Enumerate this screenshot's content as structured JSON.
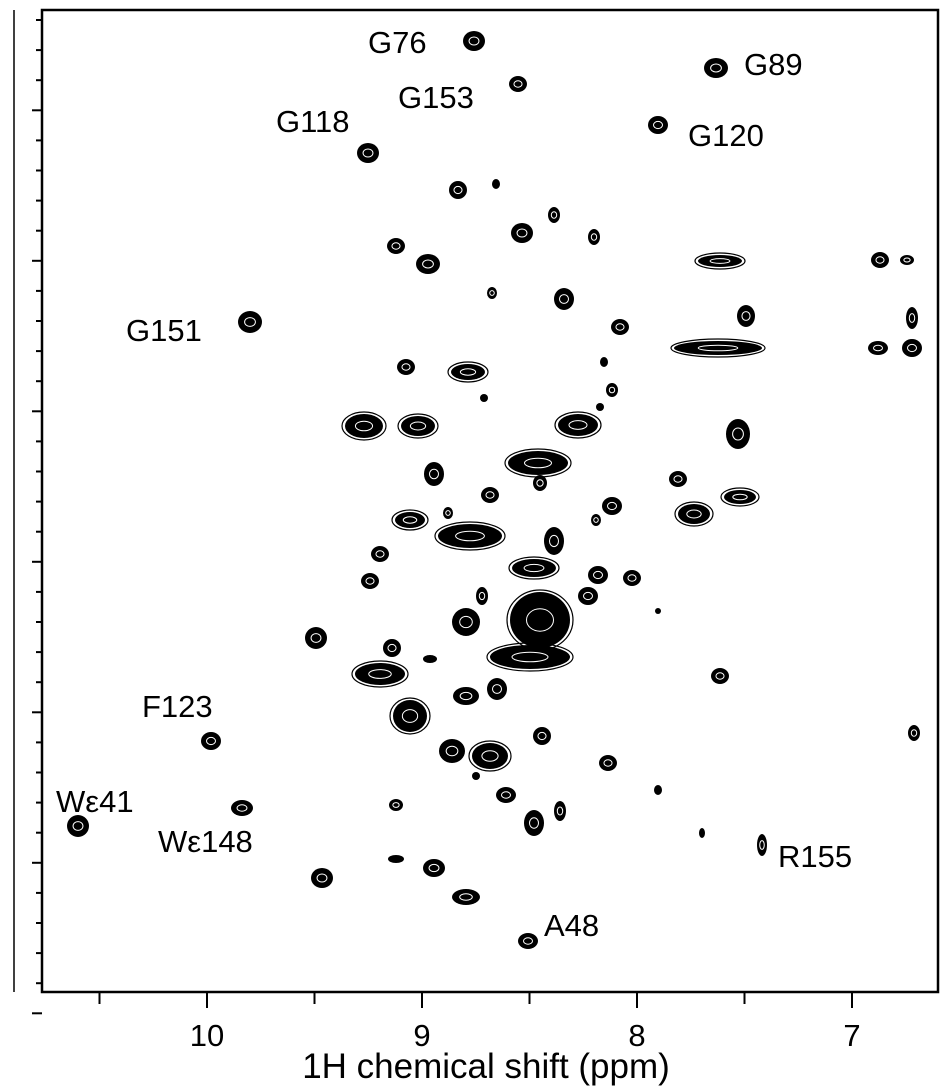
{
  "chart_data": {
    "type": "scatter",
    "title": "",
    "xlabel": "1H chemical shift (ppm)",
    "ylabel": "",
    "x_reversed": true,
    "xlim": [
      10.6,
      6.6
    ],
    "x_ticks": [
      {
        "value": 10,
        "label": "10"
      },
      {
        "value": 9,
        "label": "9"
      },
      {
        "value": 8,
        "label": "8"
      },
      {
        "value": 7,
        "label": "7"
      }
    ],
    "y_axis_tick_labels_visible": false,
    "grid": false,
    "contour_color": "#000000",
    "labeled_peaks": [
      {
        "label": "G76",
        "x": 8.72
      },
      {
        "label": "G89",
        "x": 7.62
      },
      {
        "label": "G153",
        "x": 8.52
      },
      {
        "label": "G118",
        "x": 9.22
      },
      {
        "label": "G120",
        "x": 7.88
      },
      {
        "label": "G151",
        "x": 9.75
      },
      {
        "label": "F123",
        "x": 9.92
      },
      {
        "label": "Wε41",
        "x": 10.55
      },
      {
        "label": "Wε148",
        "x": 9.78
      },
      {
        "label": "R155",
        "x": 7.41
      },
      {
        "label": "A48",
        "x": 8.47
      }
    ]
  }
}
